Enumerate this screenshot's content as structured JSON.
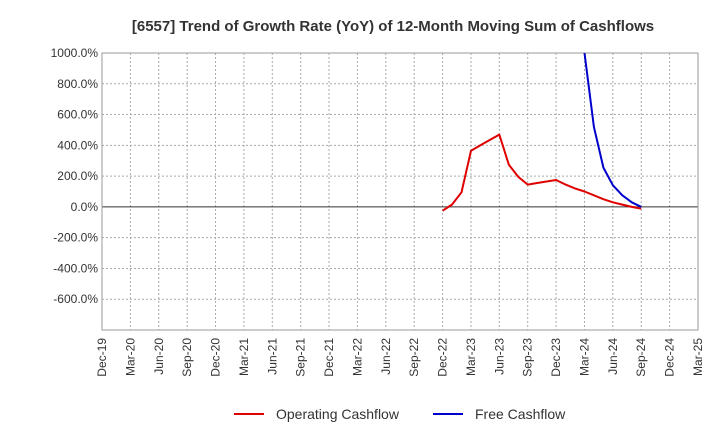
{
  "chart_data": {
    "type": "line",
    "title": "[6557]  Trend of Growth Rate (YoY) of 12-Month Moving Sum of Cashflows",
    "xlabel": "",
    "ylabel": "",
    "ylim": [
      -800,
      1000
    ],
    "y_ticks": [
      1000,
      800,
      600,
      400,
      200,
      0,
      -200,
      -400,
      -600
    ],
    "y_tick_labels": [
      "1000.0%",
      "800.0%",
      "600.0%",
      "400.0%",
      "200.0%",
      "0.0%",
      "-200.0%",
      "-400.0%",
      "-600.0%"
    ],
    "x_range": [
      "2019-12",
      "2025-03"
    ],
    "x_tick_labels": [
      "Dec-19",
      "Mar-20",
      "Jun-20",
      "Sep-20",
      "Dec-20",
      "Mar-21",
      "Jun-21",
      "Sep-21",
      "Dec-21",
      "Mar-22",
      "Jun-22",
      "Sep-22",
      "Dec-22",
      "Mar-23",
      "Jun-23",
      "Sep-23",
      "Dec-23",
      "Mar-24",
      "Jun-24",
      "Sep-24",
      "Dec-24",
      "Mar-25"
    ],
    "grid": true,
    "legend_position": "bottom",
    "series": [
      {
        "name": "Operating Cashflow",
        "color": "#e00000",
        "x": [
          "2022-12",
          "2023-01",
          "2023-02",
          "2023-03",
          "2023-04",
          "2023-05",
          "2023-06",
          "2023-07",
          "2023-08",
          "2023-09",
          "2023-10",
          "2023-11",
          "2023-12",
          "2024-01",
          "2024-02",
          "2024-03",
          "2024-04",
          "2024-05",
          "2024-06",
          "2024-07",
          "2024-08",
          "2024-09"
        ],
        "values": [
          -25,
          15,
          95,
          365,
          400,
          435,
          470,
          275,
          195,
          145,
          155,
          165,
          175,
          145,
          120,
          100,
          75,
          50,
          30,
          15,
          0,
          -12
        ]
      },
      {
        "name": "Free Cashflow",
        "color": "#0000cc",
        "x": [
          "2024-03",
          "2024-04",
          "2024-05",
          "2024-06",
          "2024-07",
          "2024-08",
          "2024-09"
        ],
        "values": [
          1000,
          520,
          255,
          140,
          75,
          30,
          0
        ]
      }
    ]
  }
}
